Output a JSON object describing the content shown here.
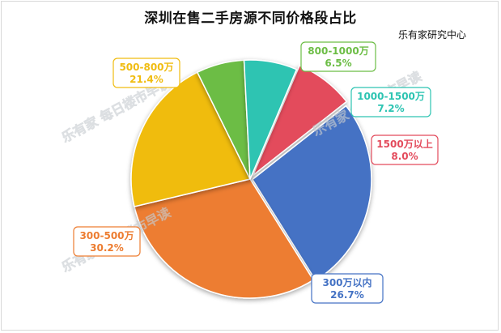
{
  "title": "深圳在售二手房源不同价格段占比",
  "source": "乐有家研究中心",
  "watermark": "乐有家 每日楼市早读",
  "chart_data": {
    "type": "pie",
    "title": "深圳在售二手房源不同价格段占比",
    "legend": "none",
    "slices": [
      {
        "label": "1500万以上",
        "value": 8.0,
        "display": "8.0%",
        "color": "#e34b5c"
      },
      {
        "label": "300万以内",
        "value": 26.7,
        "display": "26.7%",
        "color": "#4472c4"
      },
      {
        "label": "300-500万",
        "value": 30.2,
        "display": "30.2%",
        "color": "#ed7d31"
      },
      {
        "label": "500-800万",
        "value": 21.4,
        "display": "21.4%",
        "color": "#f0bc10"
      },
      {
        "label": "800-1000万",
        "value": 6.5,
        "display": "6.5%",
        "color": "#6cbd45"
      },
      {
        "label": "1000-1500万",
        "value": 7.2,
        "display": "7.2%",
        "color": "#2dc4b2"
      }
    ]
  }
}
